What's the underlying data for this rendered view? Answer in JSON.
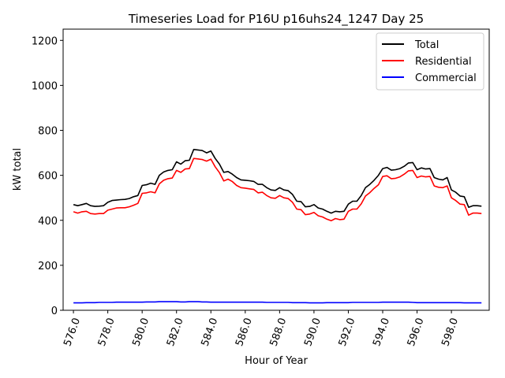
{
  "chart_data": {
    "type": "line",
    "title": "Timeseries Load for P16U p16uhs24_1247  Day 25",
    "xlabel": "Hour of Year",
    "ylabel": "kW total",
    "xlim": [
      575.4,
      600.2
    ],
    "ylim": [
      0,
      1250
    ],
    "xticks": [
      576,
      578,
      580,
      582,
      584,
      586,
      588,
      590,
      592,
      594,
      596,
      598
    ],
    "xtick_labels": [
      "576.0",
      "578.0",
      "580.0",
      "582.0",
      "584.0",
      "586.0",
      "588.0",
      "590.0",
      "592.0",
      "594.0",
      "596.0",
      "598.0"
    ],
    "yticks": [
      0,
      200,
      400,
      600,
      800,
      1000,
      1200
    ],
    "ytick_labels": [
      "0",
      "200",
      "400",
      "600",
      "800",
      "1000",
      "1200"
    ],
    "grid": false,
    "legend_position": "top-right",
    "x": [
      576.0,
      576.25,
      576.5,
      576.75,
      577.0,
      577.25,
      577.5,
      577.75,
      578.0,
      578.25,
      578.5,
      578.75,
      579.0,
      579.25,
      579.5,
      579.75,
      580.0,
      580.25,
      580.5,
      580.75,
      581.0,
      581.25,
      581.5,
      581.75,
      582.0,
      582.25,
      582.5,
      582.75,
      583.0,
      583.25,
      583.5,
      583.75,
      584.0,
      584.25,
      584.5,
      584.75,
      585.0,
      585.25,
      585.5,
      585.75,
      586.0,
      586.25,
      586.5,
      586.75,
      587.0,
      587.25,
      587.5,
      587.75,
      588.0,
      588.25,
      588.5,
      588.75,
      589.0,
      589.25,
      589.5,
      589.75,
      590.0,
      590.25,
      590.5,
      590.75,
      591.0,
      591.25,
      591.5,
      591.75,
      592.0,
      592.25,
      592.5,
      592.75,
      593.0,
      593.25,
      593.5,
      593.75,
      594.0,
      594.25,
      594.5,
      594.75,
      595.0,
      595.25,
      595.5,
      595.75,
      596.0,
      596.25,
      596.5,
      596.75,
      597.0,
      597.25,
      597.5,
      597.75,
      598.0,
      598.25,
      598.5,
      598.75,
      599.0,
      599.25,
      599.5,
      599.75
    ],
    "series": [
      {
        "name": "Total",
        "color": "#000000",
        "values": [
          470,
          465,
          470,
          475,
          465,
          462,
          463,
          465,
          480,
          488,
          490,
          492,
          493,
          497,
          505,
          510,
          555,
          558,
          565,
          560,
          600,
          615,
          622,
          625,
          660,
          650,
          665,
          667,
          715,
          713,
          710,
          700,
          708,
          675,
          650,
          613,
          617,
          605,
          590,
          580,
          578,
          576,
          573,
          560,
          560,
          545,
          535,
          533,
          545,
          535,
          532,
          515,
          485,
          483,
          460,
          462,
          470,
          455,
          450,
          440,
          432,
          440,
          438,
          440,
          472,
          485,
          485,
          510,
          545,
          560,
          578,
          600,
          630,
          635,
          623,
          625,
          630,
          640,
          655,
          657,
          625,
          633,
          628,
          630,
          590,
          583,
          580,
          590,
          535,
          525,
          508,
          505,
          458,
          465,
          465,
          463
        ]
      },
      {
        "name": "Residential",
        "color": "#ff0000",
        "values": [
          438,
          432,
          438,
          440,
          430,
          428,
          430,
          430,
          445,
          450,
          455,
          456,
          456,
          460,
          467,
          475,
          520,
          522,
          527,
          522,
          562,
          578,
          585,
          588,
          622,
          613,
          628,
          630,
          675,
          673,
          670,
          663,
          672,
          638,
          612,
          575,
          583,
          572,
          555,
          545,
          543,
          540,
          537,
          522,
          525,
          510,
          500,
          498,
          510,
          500,
          497,
          480,
          450,
          447,
          425,
          428,
          435,
          420,
          415,
          405,
          398,
          408,
          403,
          405,
          440,
          450,
          450,
          473,
          508,
          523,
          542,
          558,
          595,
          598,
          585,
          587,
          593,
          605,
          620,
          622,
          590,
          597,
          593,
          595,
          553,
          547,
          545,
          553,
          500,
          488,
          472,
          470,
          423,
          432,
          432,
          430
        ]
      },
      {
        "name": "Commercial",
        "color": "#0000ff",
        "values": [
          33,
          33,
          33,
          34,
          34,
          34,
          35,
          35,
          35,
          35,
          36,
          36,
          36,
          36,
          36,
          36,
          36,
          37,
          37,
          37,
          38,
          38,
          38,
          38,
          38,
          37,
          37,
          38,
          38,
          38,
          37,
          37,
          36,
          36,
          36,
          36,
          36,
          36,
          36,
          36,
          36,
          36,
          36,
          36,
          36,
          35,
          35,
          35,
          35,
          35,
          35,
          34,
          34,
          34,
          34,
          33,
          33,
          33,
          33,
          34,
          34,
          34,
          34,
          34,
          34,
          35,
          35,
          35,
          35,
          35,
          35,
          35,
          36,
          36,
          36,
          36,
          36,
          36,
          36,
          35,
          34,
          34,
          34,
          34,
          34,
          34,
          34,
          34,
          34,
          34,
          34,
          33,
          33,
          33,
          33,
          33
        ]
      }
    ]
  }
}
